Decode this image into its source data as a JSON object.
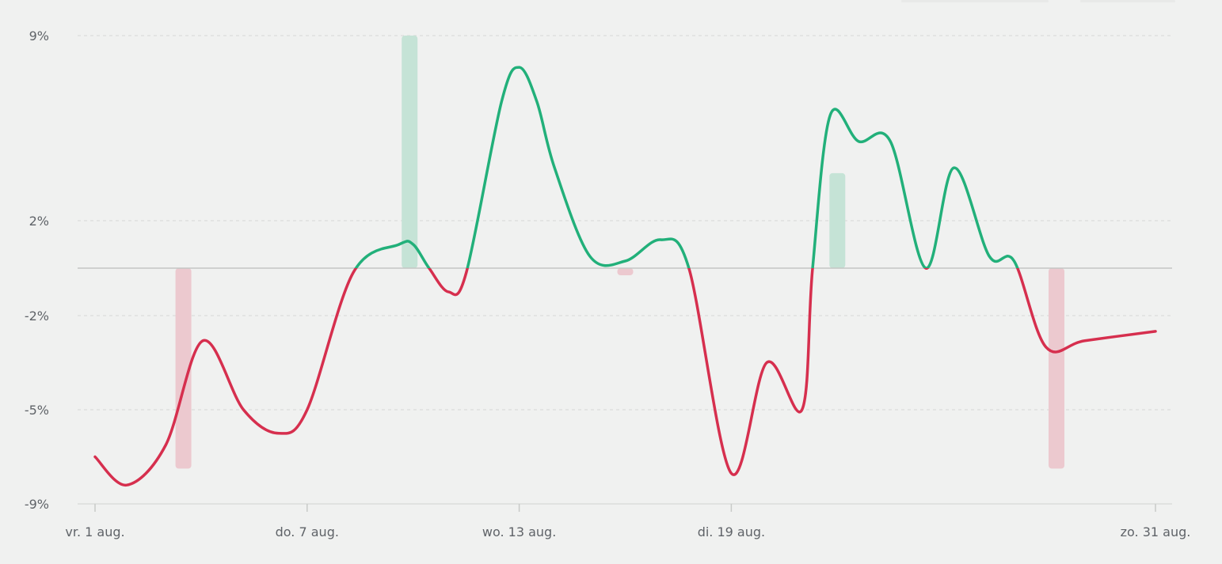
{
  "colors": {
    "background": "#f0f1f0",
    "positive": "#22b07a",
    "negative": "#d62f4e",
    "positive_bar": "#c5e3d6",
    "negative_bar": "#ecc9cf",
    "tick_text": "#5f6368"
  },
  "chart_data": {
    "type": "line",
    "title": "",
    "xlabel": "",
    "ylabel": "",
    "grid": true,
    "y_tick_labels": [
      "9%",
      "2%",
      "-2%",
      "-5%",
      "-9%"
    ],
    "x_tick_labels": [
      "vr. 1 aug.",
      "do. 7 aug.",
      "wo. 13 aug.",
      "di. 19 aug.",
      "zo. 31 aug."
    ],
    "x_tick_days": [
      1,
      7,
      13,
      19,
      31
    ],
    "xlim": [
      1,
      31
    ],
    "series": [
      {
        "values": [
          [
            1,
            -7.0
          ],
          [
            1.9,
            -8.2
          ],
          [
            3.0,
            -6.5
          ],
          [
            4.05,
            -2.8
          ],
          [
            5.2,
            -5.0
          ],
          [
            6.2,
            -6.0
          ],
          [
            7.0,
            -5.0
          ],
          [
            8.3,
            -0.2
          ],
          [
            9.6,
            1.0
          ],
          [
            10.0,
            1.0
          ],
          [
            10.45,
            0.0
          ],
          [
            11.0,
            -1.0
          ],
          [
            11.5,
            -0.2
          ],
          [
            12.5,
            6.5
          ],
          [
            13.0,
            7.8
          ],
          [
            13.5,
            6.5
          ],
          [
            14.0,
            4.0
          ],
          [
            15.0,
            0.5
          ],
          [
            16.0,
            0.3
          ],
          [
            17.0,
            1.2
          ],
          [
            17.8,
            0.0
          ],
          [
            19.0,
            -7.7
          ],
          [
            20.0,
            -3.5
          ],
          [
            21.0,
            -5.0
          ],
          [
            21.3,
            0.0
          ],
          [
            21.8,
            6.0
          ],
          [
            22.6,
            5.0
          ],
          [
            23.5,
            5.0
          ],
          [
            24.5,
            0.0
          ],
          [
            25.3,
            4.0
          ],
          [
            26.3,
            0.5
          ],
          [
            27.0,
            0.3
          ],
          [
            27.9,
            -3.0
          ],
          [
            29.0,
            -2.8
          ],
          [
            31.0,
            -2.5
          ]
        ]
      }
    ],
    "bars": [
      {
        "x": 3.5,
        "low": -7.5,
        "high": 0,
        "direction": "negative"
      },
      {
        "x": 9.9,
        "high": 9.0,
        "low": 0,
        "direction": "positive"
      },
      {
        "x": 16.0,
        "low": -0.3,
        "high": 0,
        "direction": "negative"
      },
      {
        "x": 22.0,
        "high": 3.8,
        "low": 0,
        "direction": "positive"
      },
      {
        "x": 28.2,
        "low": -7.5,
        "high": 0,
        "direction": "negative"
      }
    ]
  }
}
